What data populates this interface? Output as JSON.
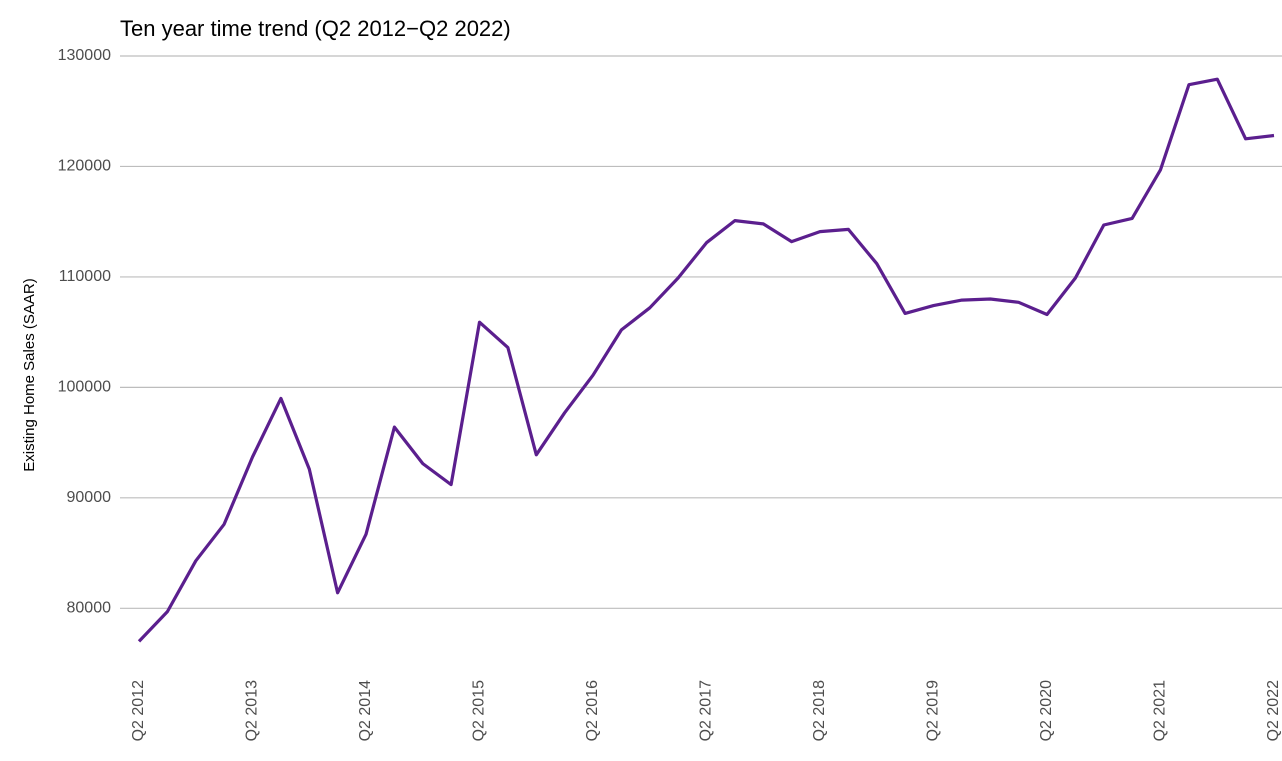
{
  "chart_data": {
    "type": "line",
    "title": "Ten year time trend (Q2 2012−Q2 2022)",
    "y_label": "Existing Home Sales (SAAR)",
    "categories": [
      "Q2 2012",
      null,
      null,
      null,
      "Q2 2013",
      null,
      null,
      null,
      "Q2 2014",
      null,
      null,
      null,
      "Q2 2015",
      null,
      null,
      null,
      "Q2 2016",
      null,
      null,
      null,
      "Q2 2017",
      null,
      null,
      null,
      "Q2 2018",
      null,
      null,
      null,
      "Q2 2019",
      null,
      null,
      null,
      "Q2 2020",
      null,
      null,
      null,
      "Q2 2021",
      null,
      null,
      null,
      "Q2 2022"
    ],
    "values": [
      77000,
      79700,
      84300,
      87600,
      93700,
      99000,
      92600,
      81400,
      86700,
      96400,
      93100,
      91200,
      105900,
      103600,
      93900,
      97700,
      101100,
      105200,
      107200,
      109900,
      113100,
      115100,
      114800,
      113200,
      114100,
      114300,
      111200,
      106700,
      107400,
      107900,
      108000,
      107700,
      106600,
      109900,
      114700,
      115300,
      119700,
      127400,
      127900,
      122500,
      122800
    ],
    "color": "#5b1f8e",
    "ylim": [
      75500,
      130000
    ],
    "yticks": [
      80000,
      90000,
      100000,
      110000,
      120000,
      130000
    ],
    "grid": true
  }
}
